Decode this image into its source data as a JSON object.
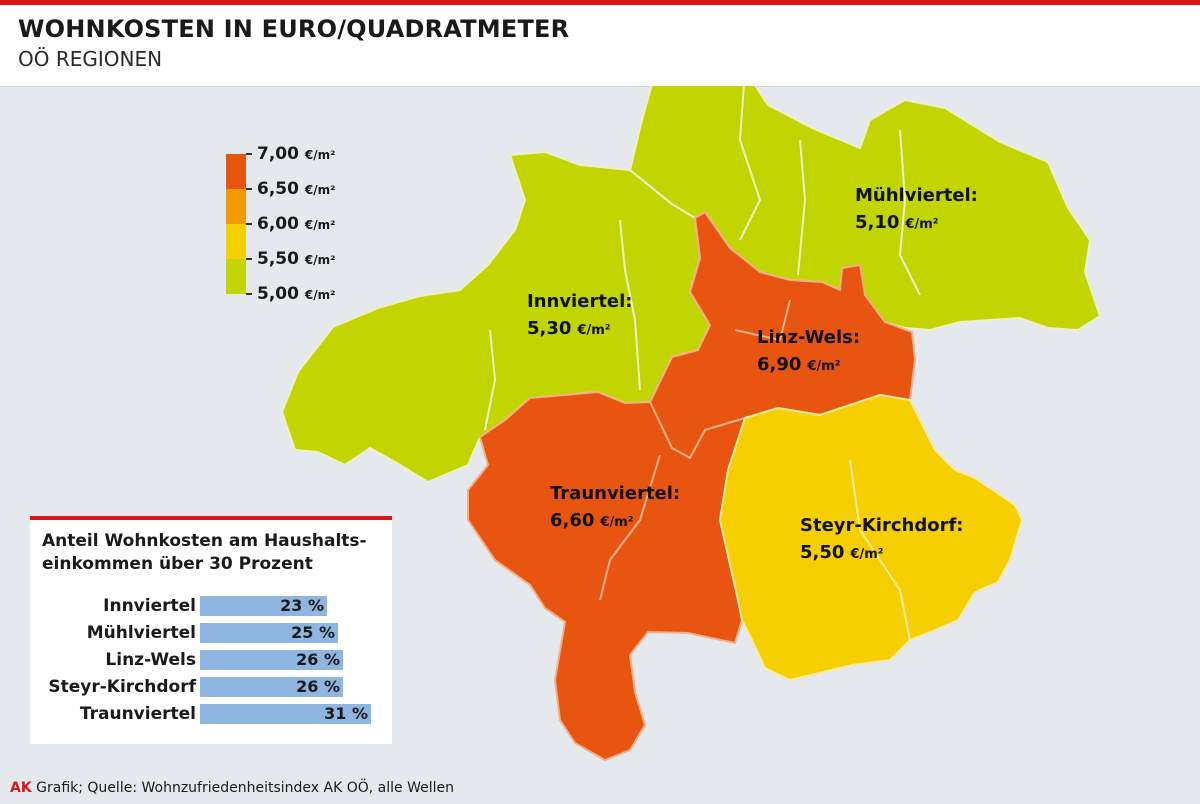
{
  "header": {
    "title": "WOHNKOSTEN IN EURO/QUADRATMETER",
    "subtitle": "OÖ REGIONEN"
  },
  "colors": {
    "accent_red": "#d9161d",
    "band_7_00": "#e85510",
    "band_6_50": "#f39a00",
    "band_6_00": "#f6cf00",
    "band_5_50": "#c3d500",
    "bar_fill": "#8fb5e1"
  },
  "legend": {
    "unit": "€/m²",
    "ticks": [
      {
        "value": "7,00",
        "unit": "€/m²"
      },
      {
        "value": "6,50",
        "unit": "€/m²"
      },
      {
        "value": "6,00",
        "unit": "€/m²"
      },
      {
        "value": "5,50",
        "unit": "€/m²"
      },
      {
        "value": "5,00",
        "unit": "€/m²"
      }
    ]
  },
  "regions": [
    {
      "name": "Innviertel:",
      "value": "5,30",
      "unit": "€/m²"
    },
    {
      "name": "Mühlviertel:",
      "value": "5,10",
      "unit": "€/m²"
    },
    {
      "name": "Linz-Wels:",
      "value": "6,90",
      "unit": "€/m²"
    },
    {
      "name": "Traunviertel:",
      "value": "6,60",
      "unit": "€/m²"
    },
    {
      "name": "Steyr-Kirchdorf:",
      "value": "5,50",
      "unit": "€/m²"
    }
  ],
  "panel": {
    "title_line1": "Anteil Wohnkosten am Haushalts-",
    "title_line2": "einkommen über 30 Prozent",
    "bars": [
      {
        "label": "Innviertel",
        "value": 23,
        "value_text": "23 %"
      },
      {
        "label": "Mühlviertel",
        "value": 25,
        "value_text": "25 %"
      },
      {
        "label": "Linz-Wels",
        "value": 26,
        "value_text": "26 %"
      },
      {
        "label": "Steyr-Kirchdorf",
        "value": 26,
        "value_text": "26 %"
      },
      {
        "label": "Traunviertel",
        "value": 31,
        "value_text": "31 %"
      }
    ]
  },
  "footer": {
    "brand": "AK",
    "text": "Grafik;  Quelle: Wohnzufriedenheitsindex AK OÖ, alle Wellen"
  }
}
